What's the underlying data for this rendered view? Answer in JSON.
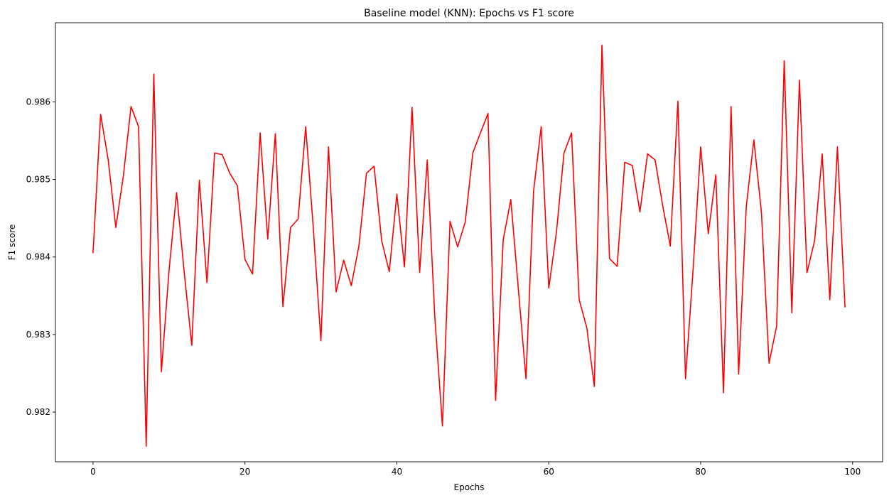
{
  "chart_data": {
    "type": "line",
    "title": "Baseline model (KNN): Epochs vs F1 score",
    "xlabel": "Epochs",
    "ylabel": "F1 score",
    "xlim": [
      -4.95,
      103.95
    ],
    "ylim": [
      0.98136,
      0.98702
    ],
    "xticks": [
      0,
      20,
      40,
      60,
      80,
      100
    ],
    "yticks": [
      0.982,
      0.983,
      0.984,
      0.985,
      0.986
    ],
    "xtick_labels": [
      "0",
      "20",
      "40",
      "60",
      "80",
      "100"
    ],
    "ytick_labels": [
      "0.982",
      "0.983",
      "0.984",
      "0.985",
      "0.986"
    ],
    "grid": false,
    "series": [
      {
        "color": "#ff0000",
        "x": [
          0,
          1,
          2,
          3,
          4,
          5,
          6,
          7,
          8,
          9,
          10,
          11,
          12,
          13,
          14,
          15,
          16,
          17,
          18,
          19,
          20,
          21,
          22,
          23,
          24,
          25,
          26,
          27,
          28,
          29,
          30,
          31,
          32,
          33,
          34,
          35,
          36,
          37,
          38,
          39,
          40,
          41,
          42,
          43,
          44,
          45,
          46,
          47,
          48,
          49,
          50,
          51,
          52,
          53,
          54,
          55,
          56,
          57,
          58,
          59,
          60,
          61,
          62,
          63,
          64,
          65,
          66,
          67,
          68,
          69,
          70,
          71,
          72,
          73,
          74,
          75,
          76,
          77,
          78,
          79,
          80,
          81,
          82,
          83,
          84,
          85,
          86,
          87,
          88,
          89,
          90,
          91,
          92,
          93,
          94,
          95,
          96,
          97,
          98,
          99
        ],
        "y": [
          0.98405,
          0.98584,
          0.98525,
          0.98438,
          0.98505,
          0.98594,
          0.98568,
          0.98156,
          0.98636,
          0.98252,
          0.98382,
          0.98483,
          0.98381,
          0.98286,
          0.98499,
          0.98367,
          0.98534,
          0.98532,
          0.98508,
          0.98492,
          0.98397,
          0.98378,
          0.9856,
          0.98423,
          0.98559,
          0.98336,
          0.98438,
          0.98449,
          0.98568,
          0.98437,
          0.98292,
          0.98542,
          0.98355,
          0.98396,
          0.98363,
          0.98414,
          0.98508,
          0.98517,
          0.98421,
          0.98381,
          0.98481,
          0.98387,
          0.98593,
          0.9838,
          0.98525,
          0.98322,
          0.98182,
          0.98446,
          0.98413,
          0.98445,
          0.98534,
          0.9856,
          0.98585,
          0.98215,
          0.98422,
          0.98474,
          0.98358,
          0.98243,
          0.98485,
          0.98568,
          0.9836,
          0.98431,
          0.98534,
          0.9856,
          0.98345,
          0.98309,
          0.98233,
          0.98673,
          0.98398,
          0.98388,
          0.98522,
          0.98518,
          0.98458,
          0.98533,
          0.98525,
          0.98466,
          0.98414,
          0.98601,
          0.98243,
          0.98384,
          0.98542,
          0.9843,
          0.98506,
          0.98225,
          0.98594,
          0.98249,
          0.98465,
          0.98551,
          0.98457,
          0.98263,
          0.98311,
          0.98653,
          0.98328,
          0.98628,
          0.9838,
          0.98421,
          0.98533,
          0.98345,
          0.98542,
          0.98335
        ]
      }
    ]
  }
}
